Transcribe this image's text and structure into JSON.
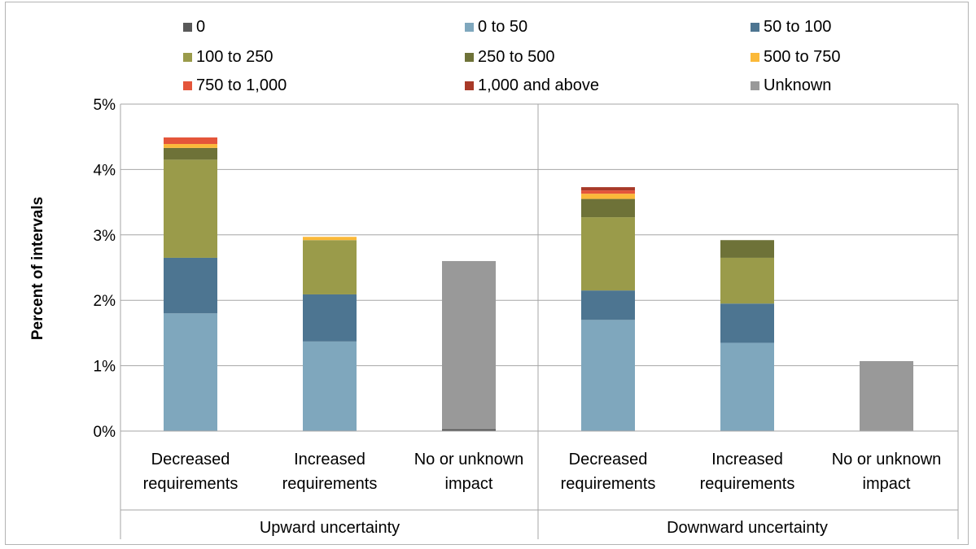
{
  "chart_data": {
    "type": "bar",
    "stacked": true,
    "ylabel": "Percent of intervals",
    "ylim": [
      0,
      5
    ],
    "yticks": [
      "0%",
      "1%",
      "2%",
      "3%",
      "4%",
      "5%"
    ],
    "grid": true,
    "legend_position": "top",
    "groups": [
      {
        "label": "Upward uncertainty",
        "categories": [
          "Decreased requirements",
          "Increased requirements",
          "No or unknown impact"
        ]
      },
      {
        "label": "Downward uncertainty",
        "categories": [
          "Decreased requirements",
          "Increased requirements",
          "No or unknown impact"
        ]
      }
    ],
    "category_labels": [
      [
        "Decreased",
        "requirements"
      ],
      [
        "Increased",
        "requirements"
      ],
      [
        "No or unknown",
        "impact"
      ],
      [
        "Decreased",
        "requirements"
      ],
      [
        "Increased",
        "requirements"
      ],
      [
        "No or unknown",
        "impact"
      ]
    ],
    "series": [
      {
        "name": "0",
        "color": "#595959",
        "values": [
          0,
          0,
          0.03,
          0,
          0,
          0
        ]
      },
      {
        "name": "0 to 50",
        "color": "#7fa7bd",
        "values": [
          1.8,
          1.37,
          0,
          1.7,
          1.35,
          0
        ]
      },
      {
        "name": "50 to 100",
        "color": "#4d7591",
        "values": [
          0.85,
          0.72,
          0,
          0.45,
          0.6,
          0
        ]
      },
      {
        "name": "100 to 250",
        "color": "#9a9b4a",
        "values": [
          1.5,
          0.83,
          0,
          1.12,
          0.7,
          0
        ]
      },
      {
        "name": "250 to 500",
        "color": "#6e7238",
        "values": [
          0.18,
          0,
          0,
          0.28,
          0.27,
          0
        ]
      },
      {
        "name": "500 to 750",
        "color": "#fbb939",
        "values": [
          0.06,
          0.05,
          0,
          0.08,
          0,
          0
        ]
      },
      {
        "name": "750 to 1,000",
        "color": "#e4553a",
        "values": [
          0.1,
          0,
          0,
          0.05,
          0,
          0
        ]
      },
      {
        "name": "1,000 and above",
        "color": "#a83928",
        "values": [
          0,
          0,
          0,
          0.05,
          0,
          0
        ]
      },
      {
        "name": "Unknown",
        "color": "#999999",
        "values": [
          0,
          0,
          2.57,
          0,
          0,
          1.07
        ]
      }
    ]
  }
}
